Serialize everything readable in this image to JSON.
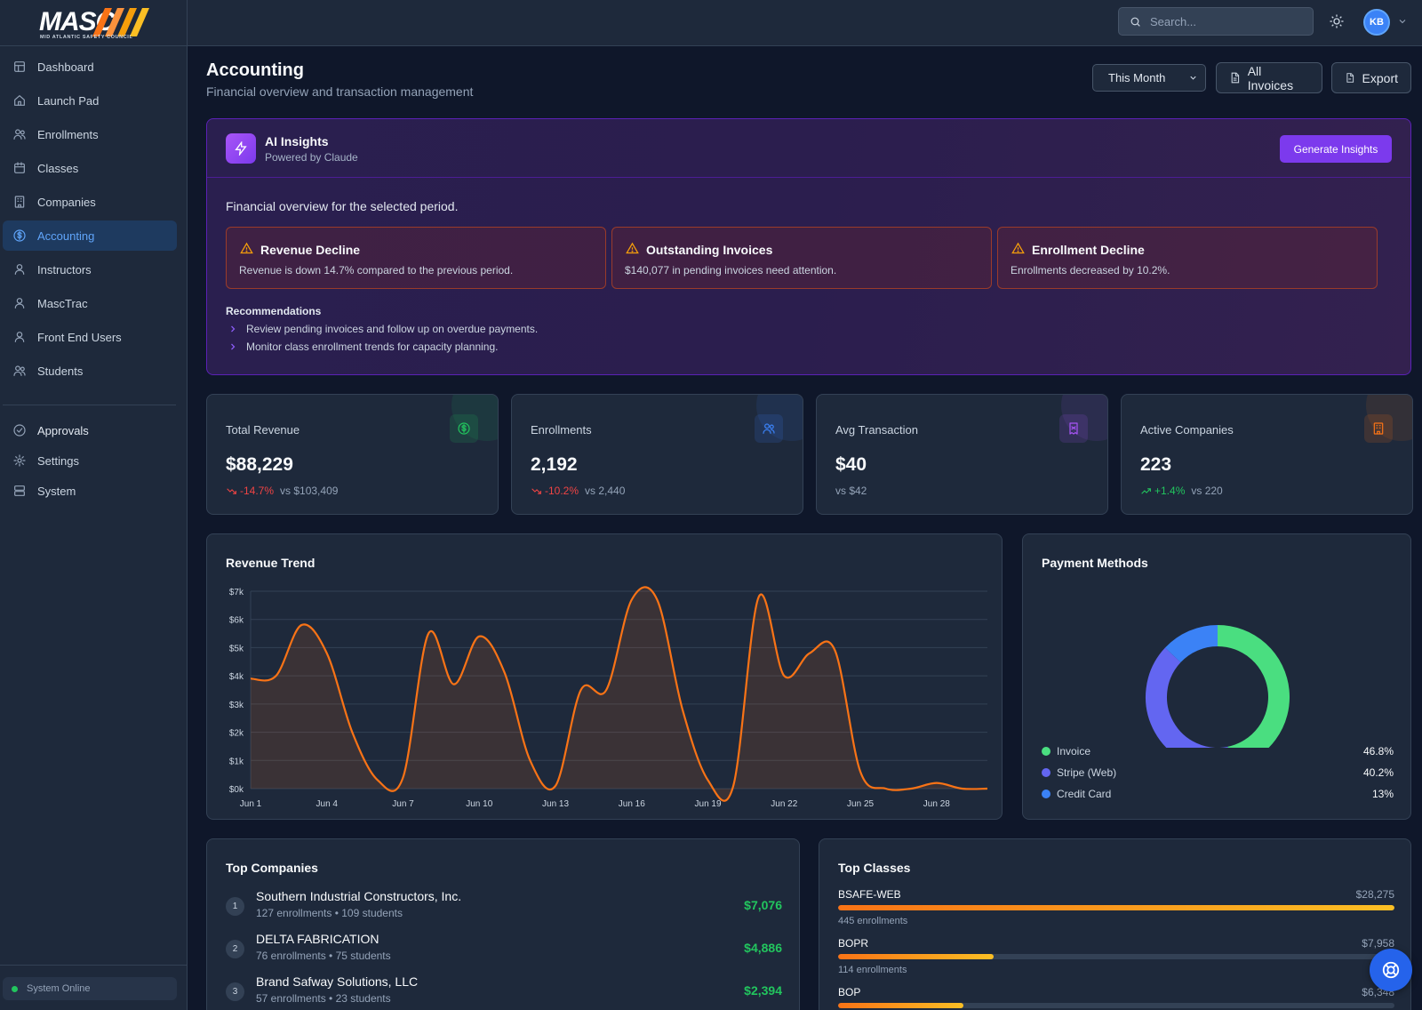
{
  "brand": {
    "logo_text": "MASC",
    "logo_sub": "MID ATLANTIC SAFETY COUNCIL"
  },
  "sidebar": {
    "items": [
      {
        "label": "Dashboard",
        "icon": "dashboard-icon"
      },
      {
        "label": "Launch Pad",
        "icon": "home-icon"
      },
      {
        "label": "Enrollments",
        "icon": "users-icon"
      },
      {
        "label": "Classes",
        "icon": "calendar-icon"
      },
      {
        "label": "Companies",
        "icon": "building-icon"
      },
      {
        "label": "Accounting",
        "icon": "dollar-icon",
        "active": true
      },
      {
        "label": "Instructors",
        "icon": "user-icon"
      },
      {
        "label": "MascTrac",
        "icon": "user-icon"
      },
      {
        "label": "Front End Users",
        "icon": "user-icon"
      },
      {
        "label": "Students",
        "icon": "users-icon"
      }
    ],
    "secondary": [
      {
        "label": "Approvals",
        "icon": "check-circle-icon"
      },
      {
        "label": "Settings",
        "icon": "gear-icon"
      },
      {
        "label": "System",
        "icon": "server-icon"
      }
    ],
    "status": "System Online"
  },
  "topbar": {
    "search_placeholder": "Search...",
    "avatar_initials": "KB"
  },
  "header": {
    "title": "Accounting",
    "subtitle": "Financial overview and transaction management",
    "period": "This Month",
    "all_invoices_label": "All Invoices",
    "export_label": "Export"
  },
  "ai": {
    "title": "AI Insights",
    "subtitle": "Powered by Claude",
    "generate_label": "Generate Insights",
    "overview": "Financial overview for the selected period.",
    "alerts": [
      {
        "title": "Revenue Decline",
        "text": "Revenue is down 14.7% compared to the previous period."
      },
      {
        "title": "Outstanding Invoices",
        "text": "$140,077 in pending invoices need attention."
      },
      {
        "title": "Enrollment Decline",
        "text": "Enrollments decreased by 10.2%."
      }
    ],
    "recommendations_title": "Recommendations",
    "recommendations": [
      "Review pending invoices and follow up on overdue payments.",
      "Monitor class enrollment trends for capacity planning."
    ]
  },
  "stats": [
    {
      "label": "Total Revenue",
      "value": "$88,229",
      "change": "-14.7%",
      "direction": "down",
      "compare": "vs $103,409",
      "icon": "dollar-icon",
      "color": "#22c55e"
    },
    {
      "label": "Enrollments",
      "value": "2,192",
      "change": "-10.2%",
      "direction": "down",
      "compare": "vs 2,440",
      "icon": "users-icon",
      "color": "#3b82f6"
    },
    {
      "label": "Avg Transaction",
      "value": "$40",
      "change": "",
      "direction": "none",
      "compare": "vs $42",
      "icon": "receipt-icon",
      "color": "#a855f7"
    },
    {
      "label": "Active Companies",
      "value": "223",
      "change": "+1.4%",
      "direction": "up",
      "compare": "vs 220",
      "icon": "building-icon",
      "color": "#f97316"
    }
  ],
  "revenue_trend": {
    "title": "Revenue Trend"
  },
  "payment_methods": {
    "title": "Payment Methods",
    "items": [
      {
        "label": "Invoice",
        "value": "46.8%",
        "pct": 46.8,
        "color": "#4ade80"
      },
      {
        "label": "Stripe (Web)",
        "value": "40.2%",
        "pct": 40.2,
        "color": "#6366f1"
      },
      {
        "label": "Credit Card",
        "value": "13%",
        "pct": 13,
        "color": "#3b82f6"
      }
    ]
  },
  "top_companies": {
    "title": "Top Companies",
    "rows": [
      {
        "rank": "1",
        "name": "Southern Industrial Constructors, Inc.",
        "meta": "127 enrollments • 109 students",
        "amount": "$7,076"
      },
      {
        "rank": "2",
        "name": "DELTA FABRICATION",
        "meta": "76 enrollments • 75 students",
        "amount": "$4,886"
      },
      {
        "rank": "3",
        "name": "Brand Safway Solutions, LLC",
        "meta": "57 enrollments • 23 students",
        "amount": "$2,394"
      }
    ]
  },
  "top_classes": {
    "title": "Top Classes",
    "rows": [
      {
        "name": "BSAFE-WEB",
        "amount": "$28,275",
        "meta": "445 enrollments",
        "fraction": 1.0
      },
      {
        "name": "BOPR",
        "amount": "$7,958",
        "meta": "114 enrollments",
        "fraction": 0.28
      },
      {
        "name": "BOP",
        "amount": "$6,348",
        "meta": "",
        "fraction": 0.225
      }
    ]
  },
  "chart_data": {
    "type": "area",
    "title": "Revenue Trend",
    "xlabel": "",
    "ylabel": "",
    "x_ticks": [
      "Jun 1",
      "Jun 4",
      "Jun 7",
      "Jun 10",
      "Jun 13",
      "Jun 16",
      "Jun 19",
      "Jun 22",
      "Jun 25",
      "Jun 28"
    ],
    "y_ticks": [
      "$0k",
      "$1k",
      "$2k",
      "$3k",
      "$4k",
      "$5k",
      "$6k",
      "$7k"
    ],
    "ylim": [
      0,
      7000
    ],
    "grid": true,
    "series": [
      {
        "color": "#f97316",
        "x": [
          "Jun 1",
          "Jun 2",
          "Jun 3",
          "Jun 4",
          "Jun 5",
          "Jun 6",
          "Jun 7",
          "Jun 8",
          "Jun 9",
          "Jun 10",
          "Jun 11",
          "Jun 12",
          "Jun 13",
          "Jun 14",
          "Jun 15",
          "Jun 16",
          "Jun 17",
          "Jun 18",
          "Jun 19",
          "Jun 20",
          "Jun 21",
          "Jun 22",
          "Jun 23",
          "Jun 24",
          "Jun 25",
          "Jun 26",
          "Jun 27",
          "Jun 28",
          "Jun 29",
          "Jun 30"
        ],
        "values": [
          3900,
          4000,
          5800,
          4800,
          2000,
          300,
          400,
          5500,
          3700,
          5400,
          4100,
          1000,
          100,
          3500,
          3500,
          6700,
          6700,
          2800,
          300,
          100,
          6800,
          4000,
          4800,
          4900,
          600,
          0,
          0,
          200,
          0,
          0
        ]
      }
    ]
  }
}
